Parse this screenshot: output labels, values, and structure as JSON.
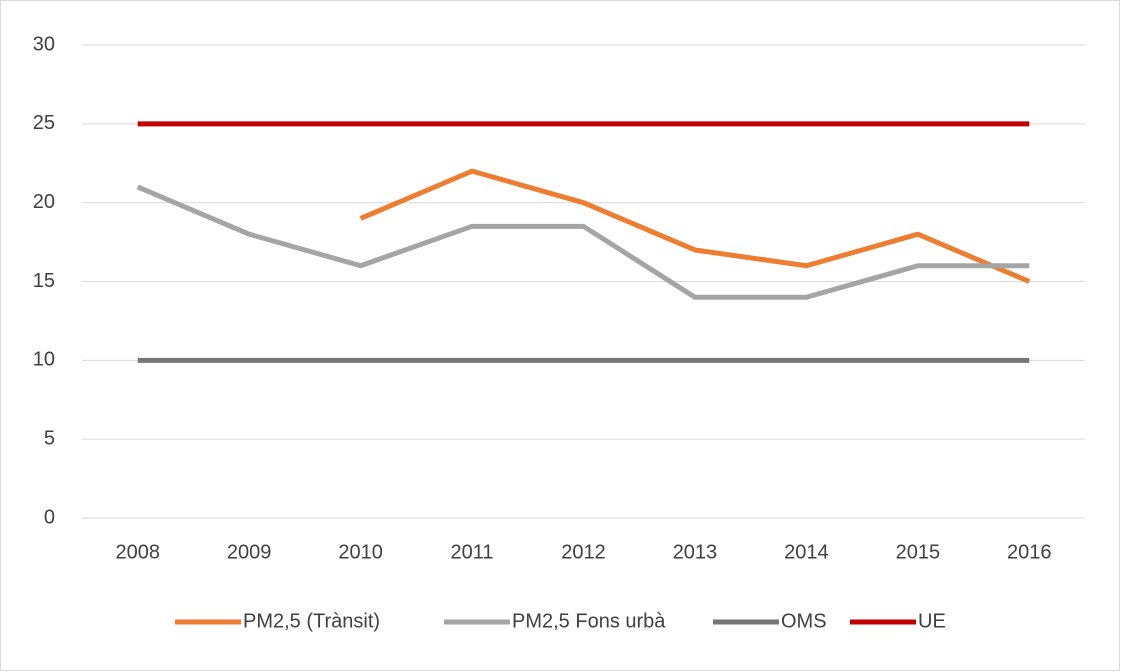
{
  "chart_data": {
    "type": "line",
    "categories": [
      "2008",
      "2009",
      "2010",
      "2011",
      "2012",
      "2013",
      "2014",
      "2015",
      "2016"
    ],
    "series": [
      {
        "name": "PM2,5 (Trànsit)",
        "color": "#ed7d31",
        "values": [
          null,
          null,
          19,
          22,
          20,
          17,
          16,
          18,
          15
        ]
      },
      {
        "name": "PM2,5 Fons urbà",
        "color": "#a5a5a5",
        "values": [
          21,
          18,
          16,
          18.5,
          18.5,
          14,
          14,
          16,
          16
        ]
      },
      {
        "name": "OMS",
        "color": "#767676",
        "values": [
          10,
          10,
          10,
          10,
          10,
          10,
          10,
          10,
          10
        ]
      },
      {
        "name": "UE",
        "color": "#c00000",
        "values": [
          25,
          25,
          25,
          25,
          25,
          25,
          25,
          25,
          25
        ]
      }
    ],
    "ylim": [
      0,
      30
    ],
    "yticks": [
      0,
      5,
      10,
      15,
      20,
      25,
      30
    ],
    "grid": true,
    "legend": "bottom"
  }
}
